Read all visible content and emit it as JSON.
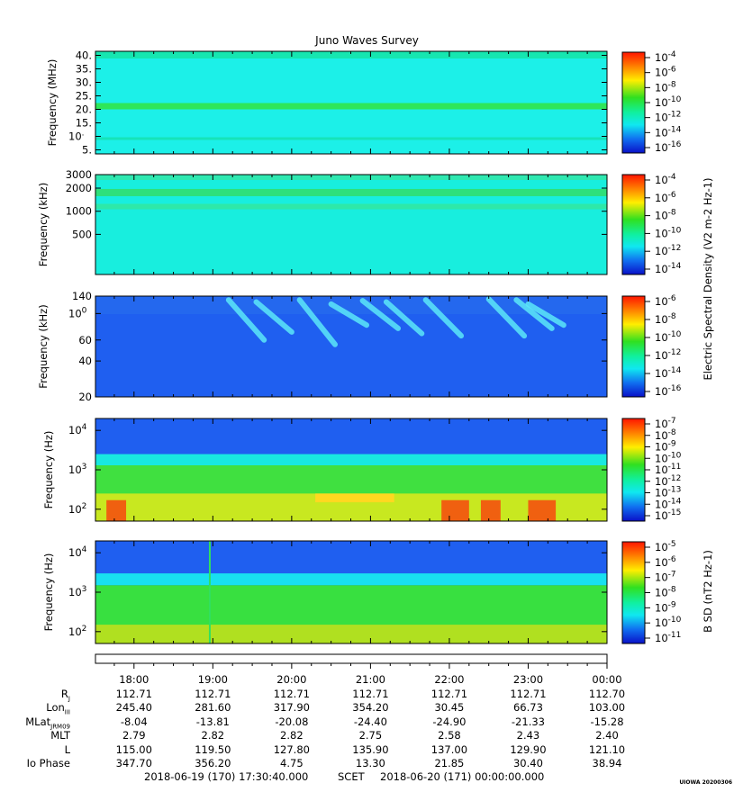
{
  "title": "Juno Waves Survey",
  "panels": [
    {
      "ylabel": "Frequency (MHz)",
      "ylim": [
        3.5,
        41.5
      ],
      "scale": "linear",
      "yticks": [
        "40.",
        "35.",
        "30.",
        "25.",
        "20.",
        "15.",
        "10.",
        "5."
      ],
      "ytick_values": [
        40,
        35,
        30,
        25,
        20,
        15,
        10,
        5
      ],
      "colorbar": {
        "ticks": [
          "10-4",
          "10-6",
          "10-8",
          "10-10",
          "10-12",
          "10-14",
          "10-16"
        ]
      }
    },
    {
      "ylabel": "Frequency (kHz)",
      "ylim": [
        150,
        3000
      ],
      "scale": "log",
      "yticks": [
        "3000",
        "2000",
        "1000",
        "500"
      ],
      "ytick_values": [
        3000,
        2000,
        1000,
        500
      ],
      "colorbar": {
        "ticks": [
          "10-4",
          "10-6",
          "10-8",
          "10-10",
          "10-12",
          "10-14"
        ]
      }
    },
    {
      "ylabel": "Frequency (kHz)",
      "ylim": [
        20,
        140
      ],
      "scale": "log",
      "yticks": [
        "140",
        "100",
        "60",
        "40",
        "20"
      ],
      "ytick_values": [
        140,
        100,
        60,
        40,
        20
      ],
      "colorbar": {
        "ticks": [
          "10-6",
          "10-8",
          "10-10",
          "10-12",
          "10-14",
          "10-16"
        ]
      }
    },
    {
      "ylabel": "Frequency (Hz)",
      "ylim": [
        50,
        20000
      ],
      "scale": "log",
      "yticks": [
        "104",
        "103",
        "102"
      ],
      "ytick_values": [
        10000,
        1000,
        100
      ],
      "colorbar": {
        "ticks": [
          "10-7",
          "10-8",
          "10-9",
          "10-10",
          "10-11",
          "10-12",
          "10-13",
          "10-14",
          "10-15"
        ]
      }
    },
    {
      "ylabel": "Frequency (Hz)",
      "ylim": [
        50,
        20000
      ],
      "scale": "log",
      "yticks": [
        "104",
        "103",
        "102"
      ],
      "ytick_values": [
        10000,
        1000,
        100
      ],
      "colorbar": {
        "ticks": [
          "10-5",
          "10-6",
          "10-7",
          "10-8",
          "10-9",
          "10-10",
          "10-11"
        ]
      }
    }
  ],
  "colorbar_labels": [
    "Electric Spectral Density (V2 m-2 Hz-1)",
    "B SD (nT2 Hz-1)"
  ],
  "ephemeris": {
    "times": [
      "18:00",
      "19:00",
      "20:00",
      "21:00",
      "22:00",
      "23:00",
      "00:00"
    ],
    "rows": [
      {
        "label": "RJ",
        "values": [
          "112.71",
          "112.71",
          "112.71",
          "112.71",
          "112.71",
          "112.71",
          "112.70"
        ]
      },
      {
        "label": "LonIII",
        "values": [
          "245.40",
          "281.60",
          "317.90",
          "354.20",
          "30.45",
          "66.73",
          "103.00"
        ]
      },
      {
        "label": "MLatJRM09",
        "values": [
          "-8.04",
          "-13.81",
          "-20.08",
          "-24.40",
          "-24.90",
          "-21.33",
          "-15.28"
        ]
      },
      {
        "label": "MLT",
        "values": [
          "2.79",
          "2.82",
          "2.82",
          "2.75",
          "2.58",
          "2.43",
          "2.40"
        ]
      },
      {
        "label": "L",
        "values": [
          "115.00",
          "119.50",
          "127.80",
          "135.90",
          "137.00",
          "129.90",
          "121.10"
        ]
      },
      {
        "label": "Io Phase",
        "values": [
          "347.70",
          "356.20",
          "4.75",
          "13.30",
          "21.85",
          "30.40",
          "38.94"
        ]
      }
    ]
  },
  "scet": {
    "start": "2018-06-19 (170) 17:30:40.000",
    "label": "SCET",
    "end": "2018-06-20 (171) 00:00:00.000"
  },
  "stamp": "UIOWA 20200306",
  "chart_data": {
    "type": "heatmap",
    "title": "Juno Waves Survey",
    "x": [
      "18:00",
      "19:00",
      "20:00",
      "21:00",
      "22:00",
      "23:00",
      "00:00"
    ],
    "xlim": [
      "2018-06-19 17:30:40",
      "2018-06-20 00:00:00"
    ],
    "series": [
      {
        "ylabel": "Frequency (MHz)",
        "ylim": [
          3.5,
          41.5
        ],
        "zlim": [
          "10-16",
          "10-4"
        ]
      },
      {
        "ylabel": "Frequency (kHz)",
        "ylim": [
          150,
          3000
        ],
        "zlim": [
          "10-14",
          "10-4"
        ]
      },
      {
        "ylabel": "Frequency (kHz)",
        "ylim": [
          20,
          140
        ],
        "zlim": [
          "10-16",
          "10-6"
        ]
      },
      {
        "ylabel": "Frequency (Hz)",
        "ylim": [
          50,
          20000
        ],
        "zlim": [
          "10-15",
          "10-7"
        ]
      },
      {
        "ylabel": "Frequency (Hz)",
        "ylim": [
          50,
          20000
        ],
        "zlim": [
          "10-11",
          "10-5"
        ]
      }
    ],
    "colors": {
      "cyan": "#19f0e6",
      "green": "#2ee86a",
      "blue": "#1a4cf0",
      "yellow": "#ffe000",
      "red": "#ff2000"
    }
  }
}
